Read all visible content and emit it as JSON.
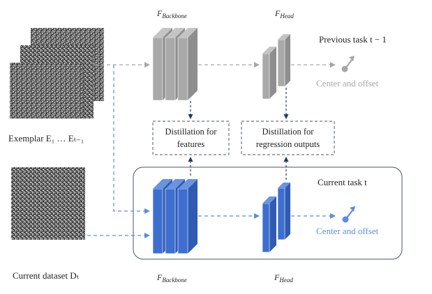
{
  "exemplar_label": "Exemplar E₁ … Eₜ₋₁",
  "current_dataset_label": "Current dataset Dₜ",
  "backbone_label_top": "F",
  "backbone_sub_top": "Backbone",
  "head_label_top": "F",
  "head_sub_top": "Head",
  "backbone_label_bottom": "F",
  "backbone_sub_bottom": "Backbone",
  "head_label_bottom": "F",
  "head_sub_bottom": "Head",
  "previous_task_label": "Previous task t − 1",
  "current_task_label": "Current task t",
  "output_top_label": "Center and offset",
  "output_bottom_label": "Center and offset",
  "distill_features_line1": "Distillation for",
  "distill_features_line2": "features",
  "distill_regression_line1": "Distillation for",
  "distill_regression_line2": "regression outputs",
  "colors": {
    "gray_block": "#a9a9a9",
    "blue_block": "#3d6fd0",
    "gray_text": "#a6a6a6",
    "blue_text": "#5b8fd6",
    "navy_arrow": "#1f3864"
  },
  "icons": [
    "noise-image",
    "layer-block",
    "pin-arrow-icon"
  ]
}
